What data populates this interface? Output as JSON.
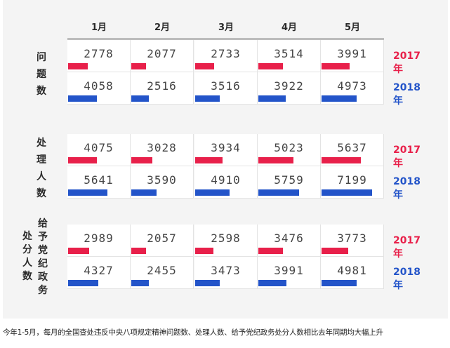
{
  "chart_data": {
    "type": "bar",
    "categories": [
      "1月",
      "2月",
      "3月",
      "4月",
      "5月"
    ],
    "groups": [
      {
        "label": "问题数",
        "series": [
          {
            "name": "2017年",
            "values": [
              2778,
              2077,
              2733,
              3514,
              3991
            ]
          },
          {
            "name": "2018年",
            "values": [
              4058,
              2516,
              3516,
              3922,
              4973
            ]
          }
        ]
      },
      {
        "label": "处理人数",
        "series": [
          {
            "name": "2017年",
            "values": [
              4075,
              3028,
              3934,
              5023,
              5637
            ]
          },
          {
            "name": "2018年",
            "values": [
              5641,
              3590,
              4910,
              5759,
              7199
            ]
          }
        ]
      },
      {
        "label_left": "处分人数",
        "label_right": "给予党纪政务",
        "series": [
          {
            "name": "2017年",
            "values": [
              2989,
              2057,
              2598,
              3476,
              3773
            ]
          },
          {
            "name": "2018年",
            "values": [
              4327,
              2455,
              3473,
              3991,
              4981
            ]
          }
        ]
      }
    ],
    "colors": {
      "2017年": "#e8204a",
      "2018年": "#2354c9"
    },
    "bar_max": 7199
  },
  "caption": "今年1-5月，每月的全国查处违反中央八项规定精神问题数、处理人数、给予党纪政务处分人数相比去年同期均大幅上升"
}
